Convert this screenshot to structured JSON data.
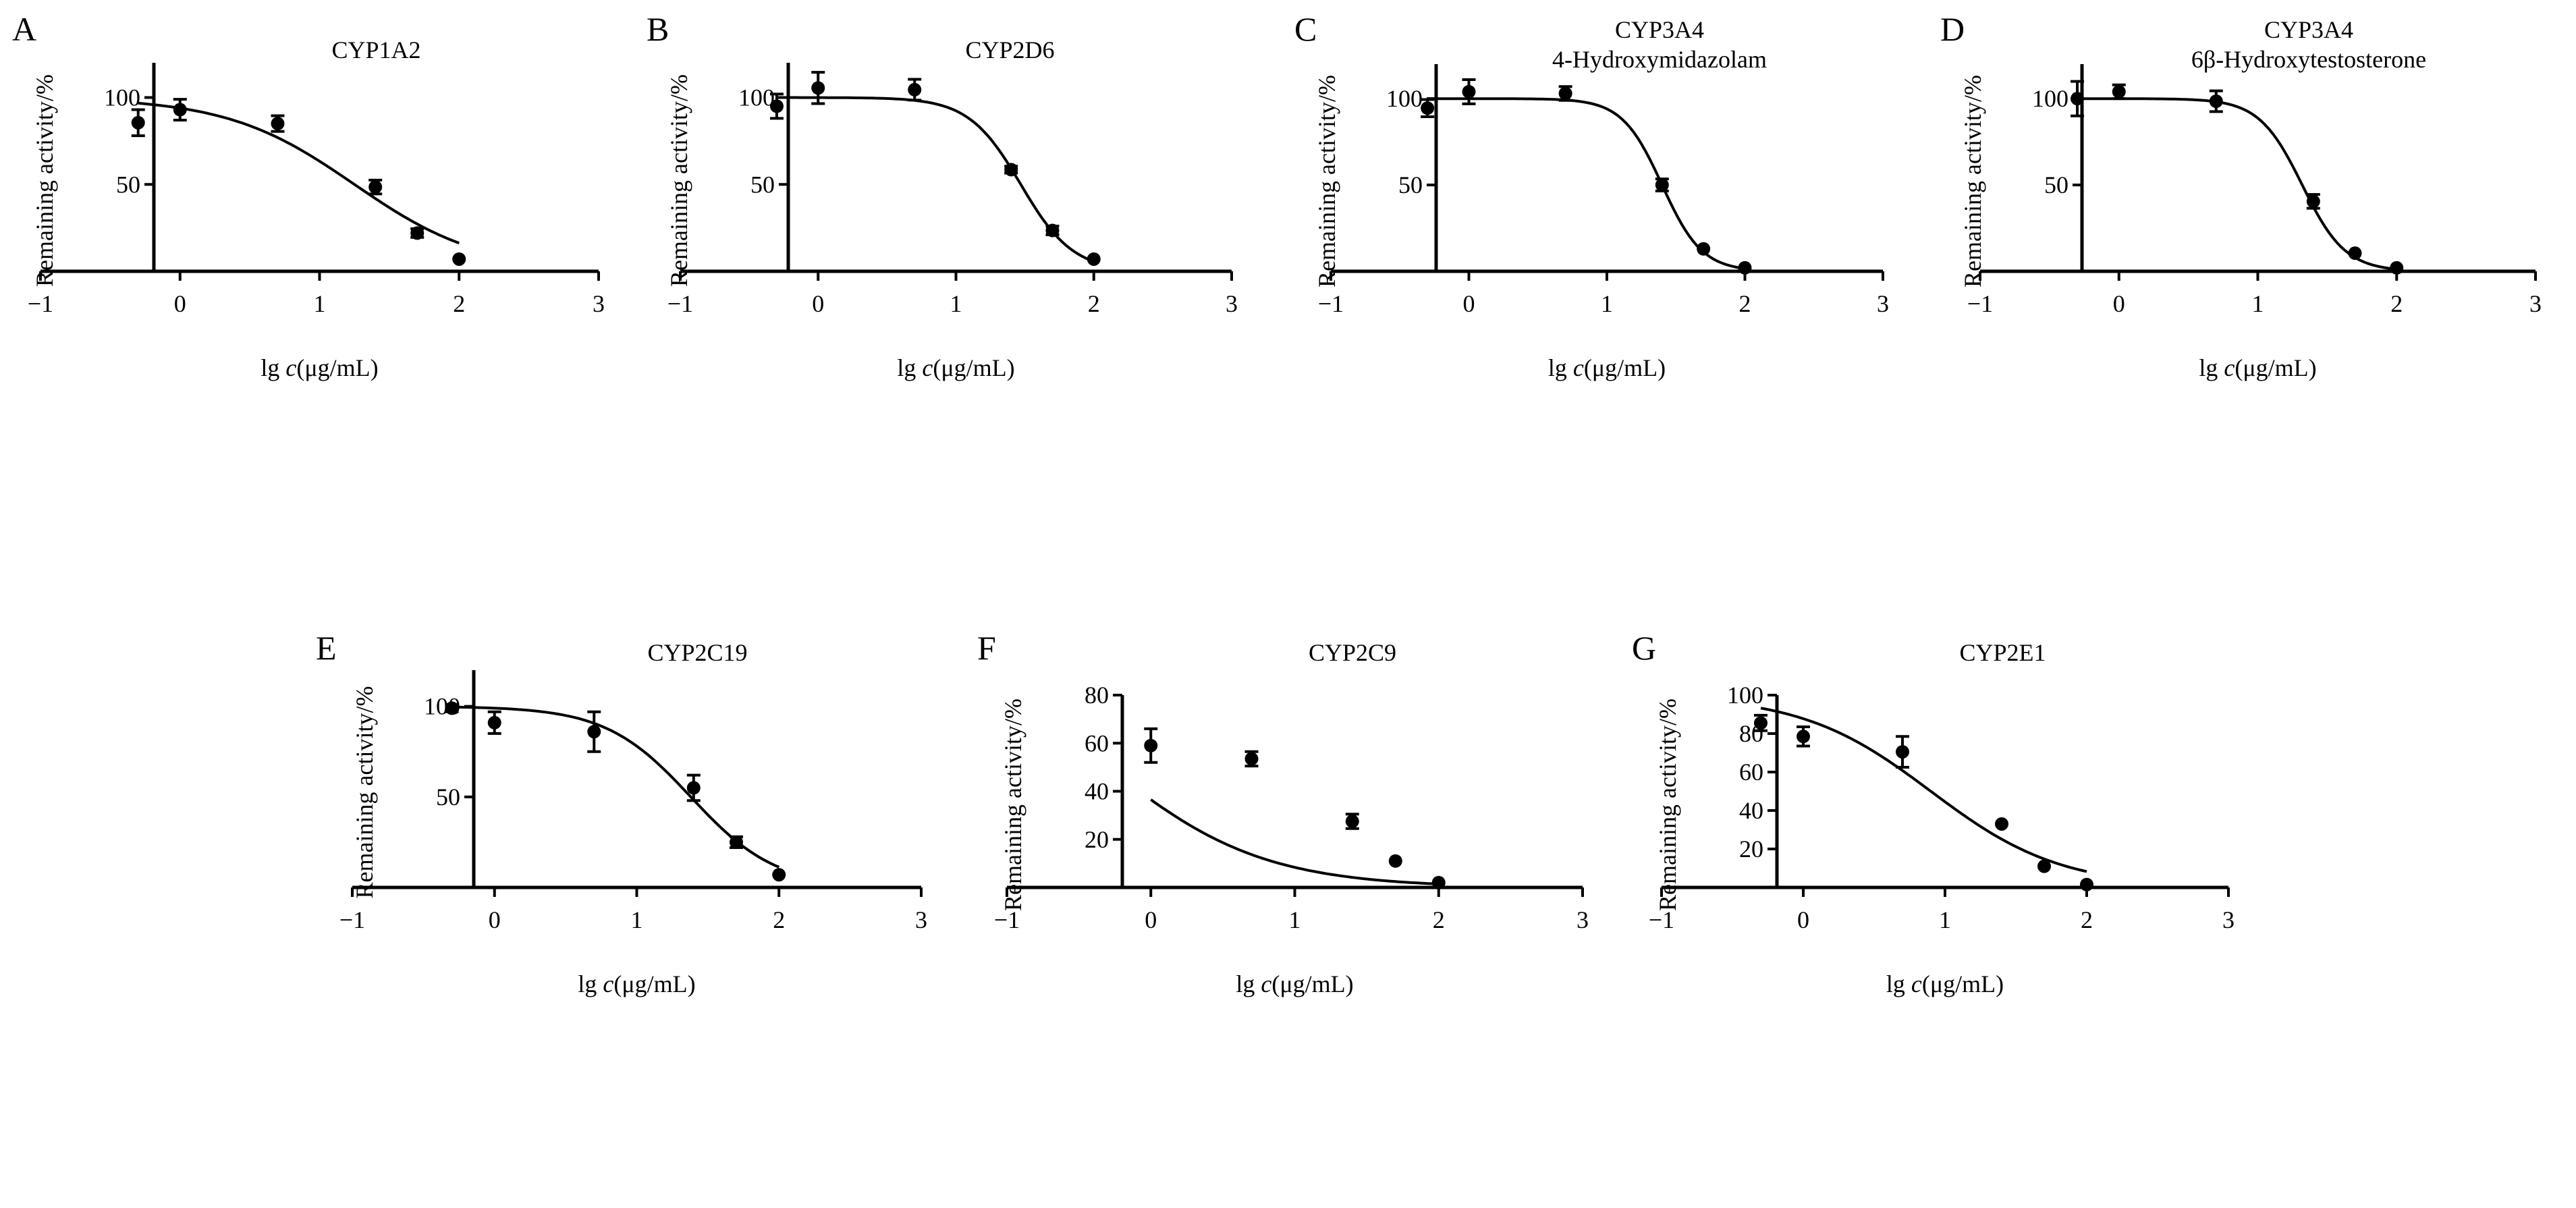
{
  "figure": {
    "x_axis_label_prefix": "lg ",
    "x_axis_label_var": "c",
    "x_axis_label_unit": "(μg/mL)",
    "y_axis_label": "Remaining activity/%"
  },
  "chart_data": [
    {
      "type": "scatter",
      "panel": "A",
      "title": [
        "CYP1A2"
      ],
      "xlabel": "lg c(μg/mL)",
      "ylabel": "Remaining activity/%",
      "xlim": [
        -1,
        3
      ],
      "ylim": [
        0,
        120
      ],
      "xticks": [
        -1,
        0,
        1,
        2,
        3
      ],
      "yticks": [
        50,
        100
      ],
      "x": [
        -0.3,
        0,
        0.7,
        1.4,
        1.7,
        2.0
      ],
      "y": [
        85.5,
        93,
        85,
        48.5,
        22,
        7
      ],
      "err": [
        7.5,
        6,
        4.5,
        4,
        2.5,
        0
      ],
      "fit": {
        "model": "logistic",
        "top": 100,
        "bottom": 0,
        "log_ic50": 1.25,
        "hill": 0.95,
        "x_range": [
          -0.3,
          2.0
        ]
      },
      "grid": false
    },
    {
      "type": "scatter",
      "panel": "B",
      "title": [
        "CYP2D6"
      ],
      "xlabel": "lg c(μg/mL)",
      "ylabel": "Remaining activity/%",
      "xlim": [
        -1,
        3
      ],
      "ylim": [
        0,
        120
      ],
      "xticks": [
        -1,
        0,
        1,
        2,
        3
      ],
      "yticks": [
        50,
        100
      ],
      "x": [
        -0.3,
        0,
        0.7,
        1.4,
        1.7,
        2.0
      ],
      "y": [
        95,
        105.5,
        104.5,
        58.5,
        23.5,
        7
      ],
      "err": [
        7,
        9,
        6,
        2,
        2.5,
        0
      ],
      "fit": {
        "model": "logistic",
        "top": 100,
        "bottom": 0,
        "log_ic50": 1.47,
        "hill": 2.3,
        "x_range": [
          -0.3,
          2.0
        ]
      },
      "grid": false
    },
    {
      "type": "scatter",
      "panel": "C",
      "title": [
        "CYP3A4",
        "4-Hydroxymidazolam"
      ],
      "xlabel": "lg c(μg/mL)",
      "ylabel": "Remaining activity/%",
      "xlim": [
        -1,
        3
      ],
      "ylim": [
        0,
        120
      ],
      "xticks": [
        -1,
        0,
        1,
        2,
        3
      ],
      "yticks": [
        50,
        100
      ],
      "x": [
        -0.3,
        0,
        0.7,
        1.4,
        1.7,
        2.0
      ],
      "y": [
        94.5,
        104,
        103,
        50,
        13,
        2
      ],
      "err": [
        5,
        7,
        4,
        3.5,
        0,
        0
      ],
      "fit": {
        "model": "logistic",
        "top": 100,
        "bottom": 0,
        "log_ic50": 1.4,
        "hill": 3.0,
        "x_range": [
          -0.3,
          2.0
        ]
      },
      "grid": false
    },
    {
      "type": "scatter",
      "panel": "D",
      "title": [
        "CYP3A4",
        "6β-Hydroxytestosterone"
      ],
      "xlabel": "lg c(μg/mL)",
      "ylabel": "Remaining activity/%",
      "xlim": [
        -1,
        3
      ],
      "ylim": [
        0,
        120
      ],
      "xticks": [
        -1,
        0,
        1,
        2,
        3
      ],
      "yticks": [
        50,
        100
      ],
      "x": [
        -0.3,
        0,
        0.7,
        1.4,
        1.7,
        2.0
      ],
      "y": [
        100,
        104,
        98.5,
        40.5,
        10.5,
        2
      ],
      "err": [
        10,
        4,
        6,
        4,
        0,
        0
      ],
      "fit": {
        "model": "logistic",
        "top": 100,
        "bottom": 0,
        "log_ic50": 1.32,
        "hill": 2.8,
        "x_range": [
          -0.3,
          2.0
        ]
      },
      "grid": false
    },
    {
      "type": "scatter",
      "panel": "E",
      "title": [
        "CYP2C19"
      ],
      "xlabel": "lg c(μg/mL)",
      "ylabel": "Remaining activity/%",
      "xlim": [
        -1,
        3
      ],
      "ylim": [
        0,
        120
      ],
      "xticks": [
        -1,
        0,
        1,
        2,
        3
      ],
      "yticks": [
        50,
        100
      ],
      "x": [
        -0.3,
        0,
        0.7,
        1.4,
        1.7,
        2.0
      ],
      "y": [
        99,
        91,
        86,
        55,
        25,
        7
      ],
      "err": [
        2,
        6,
        11,
        7,
        3,
        0
      ],
      "fit": {
        "model": "logistic",
        "top": 100,
        "bottom": 0,
        "log_ic50": 1.38,
        "hill": 1.45,
        "x_range": [
          -0.3,
          2.0
        ]
      },
      "grid": false
    },
    {
      "type": "scatter",
      "panel": "F",
      "title": [
        "CYP2C9"
      ],
      "xlabel": "lg c(μg/mL)",
      "ylabel": "Remaining activity/%",
      "xlim": [
        -1,
        3
      ],
      "ylim": [
        0,
        80
      ],
      "xticks": [
        -1,
        0,
        1,
        2,
        3
      ],
      "yticks": [
        20,
        40,
        60,
        80
      ],
      "x": [
        0,
        0.7,
        1.4,
        1.7,
        2.0
      ],
      "y": [
        59,
        53.5,
        27.5,
        11,
        2
      ],
      "err": [
        7,
        3,
        3,
        0,
        0
      ],
      "fit": {
        "model": "logistic",
        "top": 100,
        "bottom": 0,
        "log_ic50": -0.3,
        "hill": 0.8,
        "x_range": [
          0,
          2.0
        ]
      },
      "grid": false
    },
    {
      "type": "scatter",
      "panel": "G",
      "title": [
        "CYP2E1"
      ],
      "xlabel": "lg c(μg/mL)",
      "ylabel": "Remaining activity/%",
      "xlim": [
        -1,
        3
      ],
      "ylim": [
        0,
        100
      ],
      "xticks": [
        -1,
        0,
        1,
        2,
        3
      ],
      "yticks": [
        20,
        40,
        60,
        80,
        100
      ],
      "x": [
        -0.3,
        0,
        0.7,
        1.4,
        1.7,
        2.0
      ],
      "y": [
        85.5,
        78.5,
        70.5,
        33,
        11,
        1.5
      ],
      "err": [
        4,
        5,
        8,
        0,
        0,
        0
      ],
      "fit": {
        "model": "logistic",
        "top": 100,
        "bottom": 0,
        "log_ic50": 0.9,
        "hill": 0.95,
        "x_range": [
          -0.3,
          2.0
        ]
      },
      "grid": false
    }
  ]
}
